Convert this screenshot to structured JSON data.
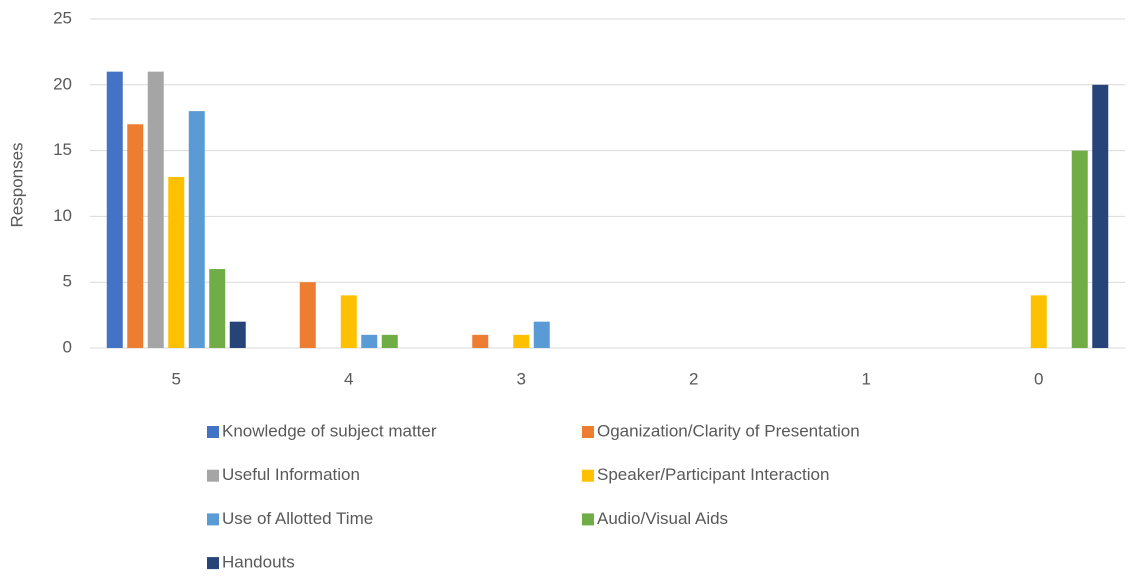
{
  "chart_data": {
    "type": "bar",
    "y_label": "Responses",
    "categories": [
      "5",
      "4",
      "3",
      "2",
      "1",
      "0"
    ],
    "series": [
      {
        "name": "Knowledge of subject matter",
        "color": "#4472c4",
        "values": [
          21,
          0,
          0,
          0,
          0,
          0
        ]
      },
      {
        "name": "Oganization/Clarity of Presentation",
        "color": "#ed7d31",
        "values": [
          17,
          5,
          1,
          0,
          0,
          0
        ]
      },
      {
        "name": "Useful Information",
        "color": "#a5a5a5",
        "values": [
          21,
          0,
          0,
          0,
          0,
          0
        ]
      },
      {
        "name": "Speaker/Participant Interaction",
        "color": "#ffc000",
        "values": [
          13,
          4,
          1,
          0,
          0,
          4
        ]
      },
      {
        "name": "Use of Allotted Time",
        "color": "#5b9bd5",
        "values": [
          18,
          1,
          2,
          0,
          0,
          0
        ]
      },
      {
        "name": "Audio/Visual Aids",
        "color": "#70ad47",
        "values": [
          6,
          1,
          0,
          0,
          0,
          15
        ]
      },
      {
        "name": "Handouts",
        "color": "#264478",
        "values": [
          2,
          0,
          0,
          0,
          0,
          20
        ]
      }
    ],
    "ylim": [
      0,
      25
    ],
    "yticks": [
      0,
      5,
      10,
      15,
      20,
      25
    ],
    "grid": true,
    "legend": "bottom"
  }
}
